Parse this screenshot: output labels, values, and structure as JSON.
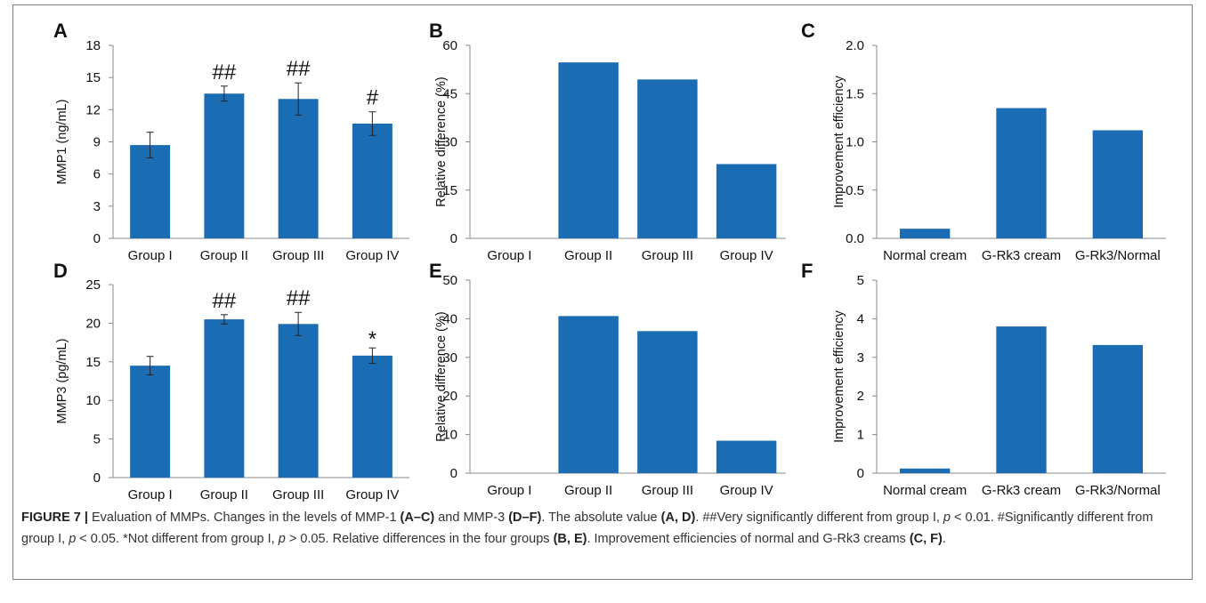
{
  "bar_color": "#1a6db3",
  "chart_data": [
    {
      "panel": "A",
      "type": "bar",
      "categories": [
        "Group I",
        "Group II",
        "Group III",
        "Group IV"
      ],
      "values": [
        8.7,
        13.5,
        13.0,
        10.7
      ],
      "errors": [
        1.2,
        0.7,
        1.5,
        1.1
      ],
      "annotations": [
        "",
        "##",
        "##",
        "#"
      ],
      "ylabel": "MMP1 (ng/mL)",
      "ylim": [
        0,
        18
      ],
      "yticks": [
        0,
        3,
        6,
        9,
        12,
        15,
        18
      ],
      "yticklabels": [
        "0",
        "3",
        "6",
        "9",
        "12",
        "15",
        "18"
      ]
    },
    {
      "panel": "B",
      "type": "bar",
      "categories": [
        "Group I",
        "Group II",
        "Group III",
        "Group IV"
      ],
      "values": [
        0,
        54.7,
        49.4,
        23.1
      ],
      "ylabel": "Relative difference (%)",
      "ylim": [
        0,
        60
      ],
      "yticks": [
        0,
        15,
        30,
        45,
        60
      ],
      "yticklabels": [
        "0",
        "15",
        "30",
        "45",
        "60"
      ]
    },
    {
      "panel": "C",
      "type": "bar",
      "categories": [
        "Normal cream",
        "G-Rk3 cream",
        "G-Rk3/Normal"
      ],
      "values": [
        0.1,
        1.35,
        1.12
      ],
      "ylabel": "Improvement efficiency",
      "ylim": [
        0,
        2
      ],
      "yticks": [
        0,
        0.5,
        1,
        1.5,
        2
      ],
      "yticklabels": [
        "0.0",
        "0.5",
        "1.0",
        "1.5",
        "2.0"
      ]
    },
    {
      "panel": "D",
      "type": "bar",
      "categories": [
        "Group I",
        "Group II",
        "Group III",
        "Group IV"
      ],
      "values": [
        14.5,
        20.5,
        19.9,
        15.8
      ],
      "errors": [
        1.2,
        0.6,
        1.5,
        1.0
      ],
      "annotations": [
        "",
        "##",
        "##",
        "*"
      ],
      "ylabel": "MMP3 (pg/mL)",
      "ylim": [
        0,
        25
      ],
      "yticks": [
        0,
        5,
        10,
        15,
        20,
        25
      ],
      "yticklabels": [
        "0",
        "5",
        "10",
        "15",
        "20",
        "25"
      ]
    },
    {
      "panel": "E",
      "type": "bar",
      "categories": [
        "Group I",
        "Group II",
        "Group III",
        "Group IV"
      ],
      "values": [
        0,
        40.7,
        36.8,
        8.4
      ],
      "ylabel": "Relative difference (%)",
      "ylim": [
        0,
        50
      ],
      "yticks": [
        0,
        10,
        20,
        30,
        40,
        50
      ],
      "yticklabels": [
        "0",
        "10",
        "20",
        "30",
        "40",
        "50"
      ]
    },
    {
      "panel": "F",
      "type": "bar",
      "categories": [
        "Normal cream",
        "G-Rk3 cream",
        "G-Rk3/Normal"
      ],
      "values": [
        0.12,
        3.8,
        3.32
      ],
      "ylabel": "Improvement efficiency",
      "ylim": [
        0,
        5
      ],
      "yticks": [
        0,
        1,
        2,
        3,
        4,
        5
      ],
      "yticklabels": [
        "0",
        "1",
        "2",
        "3",
        "4",
        "5"
      ]
    }
  ],
  "caption": {
    "label": "FIGURE 7 |",
    "text_1": " Evaluation of MMPs. Changes in the levels of MMP-1 ",
    "ref_1": "(A–C)",
    "text_2": " and MMP-3 ",
    "ref_2": "(D–F)",
    "text_3": ". The absolute value ",
    "ref_3": "(A, D)",
    "text_4": ". ##Very significantly different from group I, ",
    "p_1": "p",
    "text_5": " < 0.01. #Significantly different from group I, ",
    "p_2": "p",
    "text_6": " < 0.05. *Not different from group I, ",
    "p_3": "p",
    "text_7": " > 0.05. Relative differences in the four groups ",
    "ref_4": "(B, E)",
    "text_8": ". Improvement efficiencies of normal and G-Rk3 creams ",
    "ref_5": "(C, F)",
    "text_9": "."
  }
}
